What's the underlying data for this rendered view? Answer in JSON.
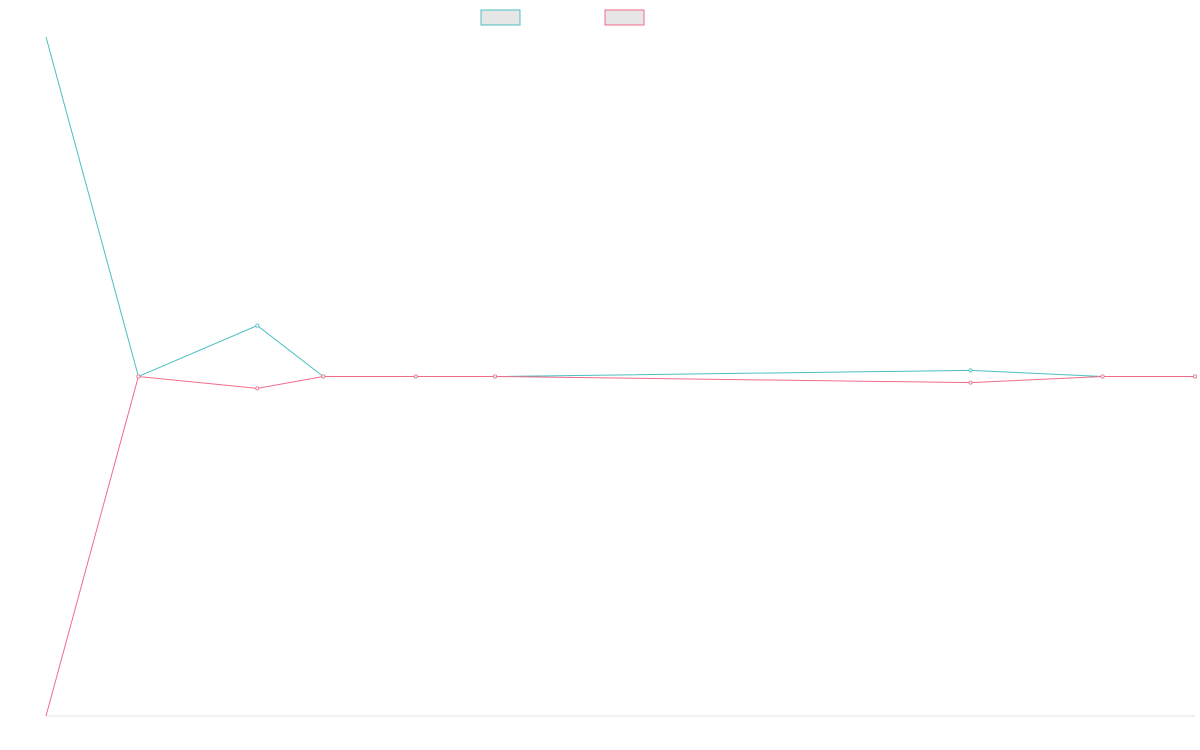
{
  "colors": {
    "series_a": "#4bbfc0",
    "series_b": "#f06c8a",
    "legend_fill": "#e6e6e6",
    "axis": "#e3e3e3",
    "background": "#ffffff"
  },
  "chart_data": {
    "type": "line",
    "x": [
      0,
      7,
      16,
      21,
      28,
      34,
      70,
      80,
      87
    ],
    "ylim": [
      -1,
      1
    ],
    "grid": false,
    "legend_placement": "top-center",
    "series": [
      {
        "color": "#4bbfc0",
        "values": [
          1.0,
          0.0,
          0.15,
          0.0,
          0.0,
          0.0,
          0.018,
          0.0,
          0.0
        ]
      },
      {
        "color": "#f06c8a",
        "values": [
          -1.0,
          0.0,
          -0.035,
          0.0,
          0.0,
          0.0,
          -0.018,
          0.0,
          0.0
        ]
      }
    ]
  }
}
